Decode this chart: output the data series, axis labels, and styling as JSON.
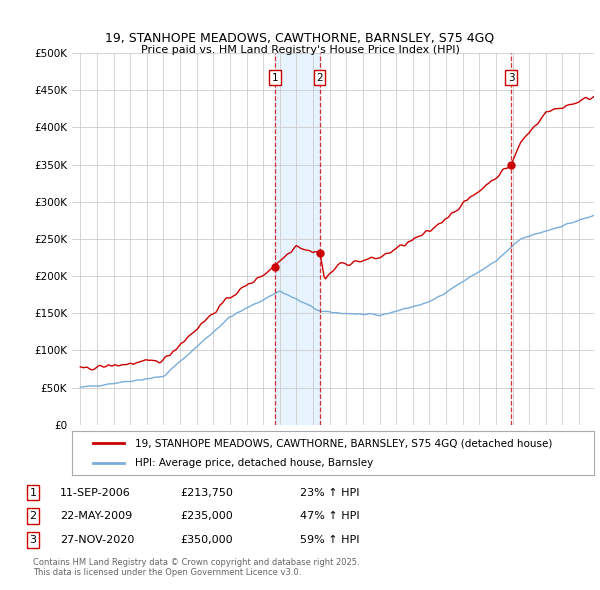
{
  "title": "19, STANHOPE MEADOWS, CAWTHORNE, BARNSLEY, S75 4GQ",
  "subtitle": "Price paid vs. HM Land Registry's House Price Index (HPI)",
  "ylim": [
    0,
    500000
  ],
  "yticks": [
    0,
    50000,
    100000,
    150000,
    200000,
    250000,
    300000,
    350000,
    400000,
    450000,
    500000
  ],
  "xlim_start": 1994.5,
  "xlim_end": 2025.9,
  "sale_dates": [
    2006.69,
    2009.39,
    2020.91
  ],
  "sale_prices": [
    213750,
    235000,
    350000
  ],
  "sale_labels": [
    "1",
    "2",
    "3"
  ],
  "sale_info": [
    {
      "label": "1",
      "date": "11-SEP-2006",
      "price": "£213,750",
      "hpi": "23% ↑ HPI"
    },
    {
      "label": "2",
      "date": "22-MAY-2009",
      "price": "£235,000",
      "hpi": "47% ↑ HPI"
    },
    {
      "label": "3",
      "date": "27-NOV-2020",
      "price": "£350,000",
      "hpi": "59% ↑ HPI"
    }
  ],
  "legend_entries": [
    "19, STANHOPE MEADOWS, CAWTHORNE, BARNSLEY, S75 4GQ (detached house)",
    "HPI: Average price, detached house, Barnsley"
  ],
  "red_color": "#cc0000",
  "blue_color": "#7aaddb",
  "shade_color": "#ddeeff",
  "footer": "Contains HM Land Registry data © Crown copyright and database right 2025.\nThis data is licensed under the Open Government Licence v3.0.",
  "background_color": "#ffffff",
  "grid_color": "#cccccc"
}
